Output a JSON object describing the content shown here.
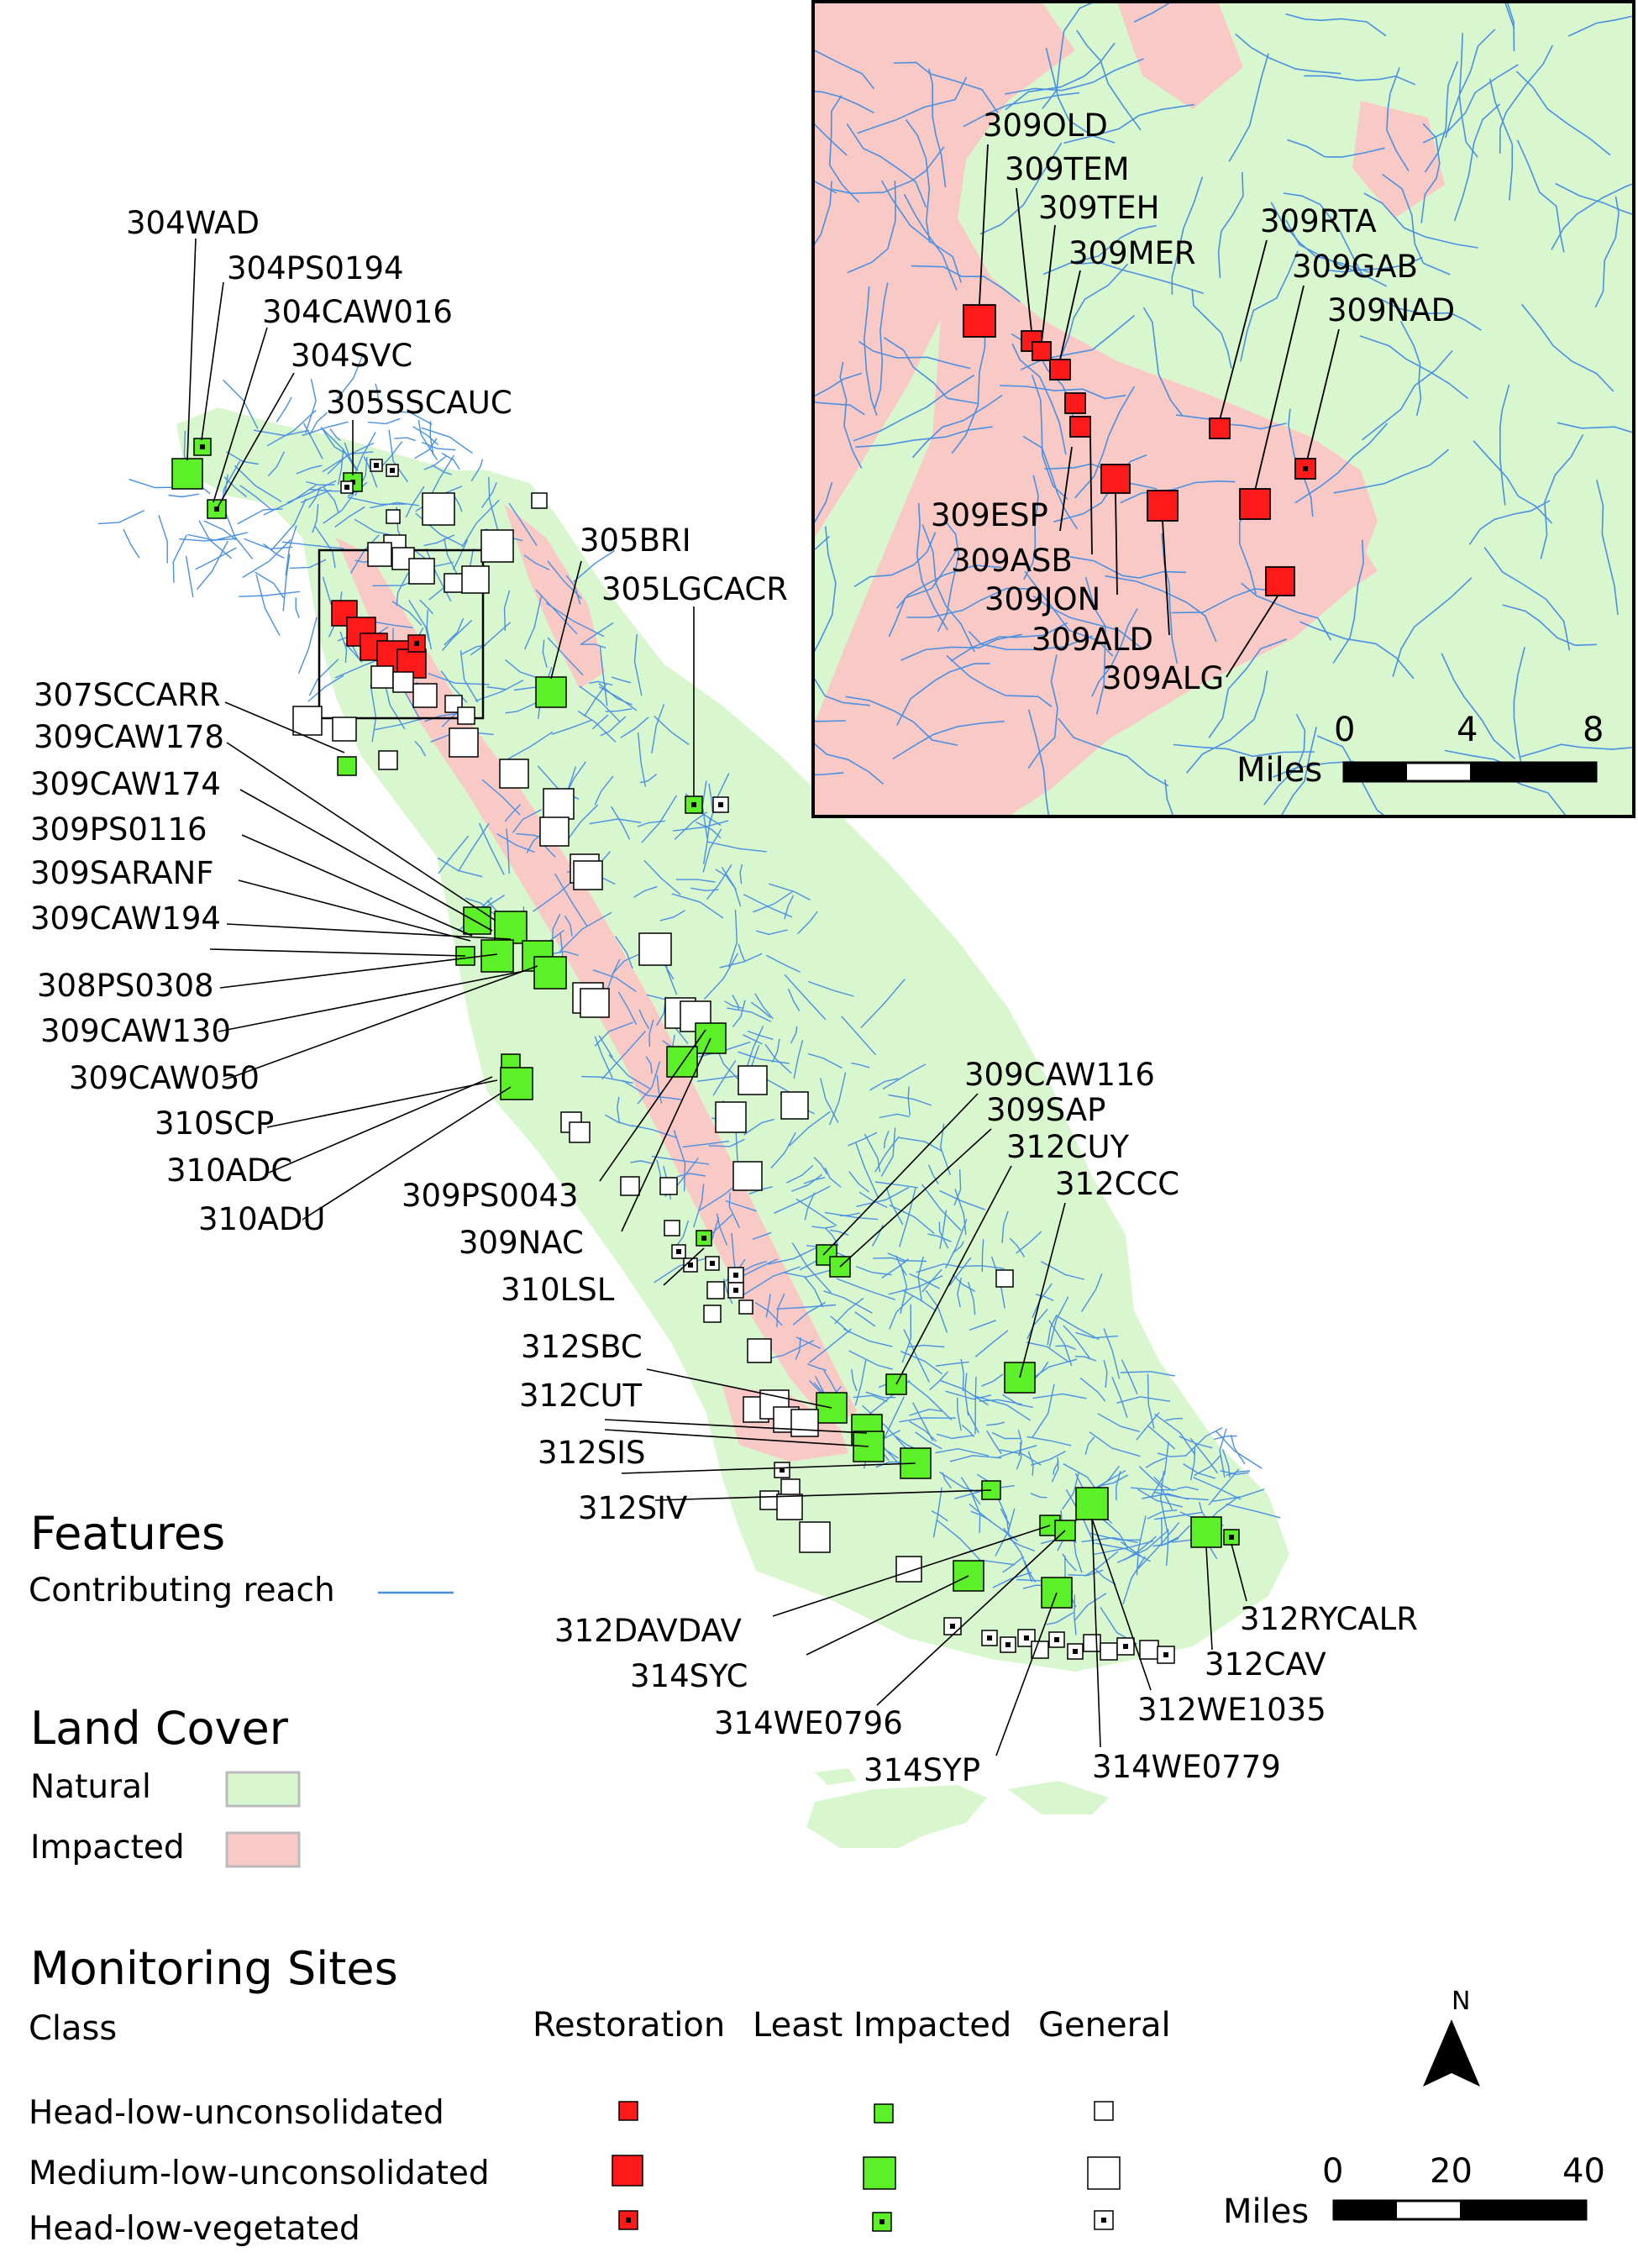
{
  "legend": {
    "features_title": "Features",
    "contributing_reach": "Contributing reach",
    "landcover_title": "Land Cover",
    "natural": "Natural",
    "impacted": "Impacted",
    "sites_title": "Monitoring Sites",
    "class_label": "Class",
    "col_restoration": "Restoration",
    "col_least": "Least Impacted",
    "col_general": "General",
    "row1": "Head-low-unconsolidated",
    "row2": "Medium-low-unconsolidated",
    "row3": "Head-low-vegetated"
  },
  "colors": {
    "natural": "#d9f7cf",
    "impacted": "#f9c9c6",
    "reach": "#4a90e2",
    "restoration": "#ff1a1a",
    "least": "#5cf028",
    "general": "#ffffff"
  },
  "scale_main": {
    "t0": "0",
    "t1": "20",
    "t2": "40",
    "unit": "Miles"
  },
  "scale_inset": {
    "t0": "0",
    "t1": "4",
    "t2": "8",
    "unit": "Miles"
  },
  "north": "N",
  "site_labels": [
    "304WAD",
    "304PS0194",
    "304CAW016",
    "304SVC",
    "305SSCAUC",
    "305BRI",
    "305LGCACR",
    "307SCCARR",
    "309CAW178",
    "309CAW174",
    "309PS0116",
    "309SARANF",
    "309CAW194",
    "308PS0308",
    "309CAW130",
    "309CAW050",
    "310SCP",
    "310ADC",
    "310ADU",
    "309PS0043",
    "309NAC",
    "310LSL",
    "309CAW116",
    "309SAP",
    "312CUY",
    "312CCC",
    "312SBC",
    "312CUT",
    "312SIS",
    "312SIV",
    "312DAVDAV",
    "314SYC",
    "314WE0796",
    "314SYP",
    "314WE0779",
    "312WE1035",
    "312CAV",
    "312RYCALR"
  ],
  "inset_labels": [
    "309OLD",
    "309TEM",
    "309TEH",
    "309MER",
    "309RTA",
    "309GAB",
    "309NAD",
    "309ESP",
    "309ASB",
    "309JON",
    "309ALD",
    "309ALG"
  ]
}
